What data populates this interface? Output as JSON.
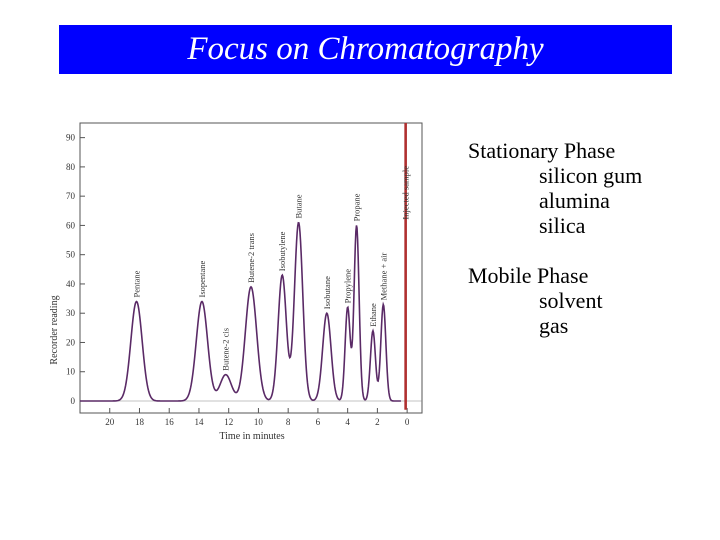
{
  "header": {
    "title": "Focus on Chromatography"
  },
  "stationary": {
    "title": "Stationary Phase",
    "items": [
      "silicon gum",
      "alumina",
      "silica"
    ]
  },
  "mobile": {
    "title": "Mobile Phase",
    "items": [
      "solvent",
      "gas"
    ]
  },
  "colors": {
    "title_bg": "#0000ff",
    "title_text": "#ffffff",
    "trace": "#5a2a66",
    "injection": "#b03030"
  },
  "chart_data": {
    "type": "line",
    "title": "",
    "xlabel": "Time in minutes",
    "ylabel": "Recorder reading",
    "xlim": [
      22,
      -1
    ],
    "ylim": [
      0,
      95
    ],
    "x_ticks": [
      20,
      18,
      16,
      14,
      12,
      10,
      8,
      6,
      4,
      2,
      0
    ],
    "y_ticks": [
      0,
      10,
      20,
      30,
      40,
      50,
      60,
      70,
      80,
      90
    ],
    "grid": false,
    "peaks": [
      {
        "name": "Pentane",
        "x": 18.2,
        "y": 34
      },
      {
        "name": "Isopentane",
        "x": 13.8,
        "y": 34
      },
      {
        "name": "Butene-2 cis",
        "x": 12.2,
        "y": 9
      },
      {
        "name": "Butene-2 trans",
        "x": 10.5,
        "y": 39
      },
      {
        "name": "Isobutylene",
        "x": 8.4,
        "y": 43
      },
      {
        "name": "Butane",
        "x": 7.3,
        "y": 61
      },
      {
        "name": "Isobutane",
        "x": 5.4,
        "y": 30
      },
      {
        "name": "Propylene",
        "x": 4.0,
        "y": 32
      },
      {
        "name": "Propane",
        "x": 3.4,
        "y": 60
      },
      {
        "name": "Ethane",
        "x": 2.3,
        "y": 24
      },
      {
        "name": "Methane + air",
        "x": 1.6,
        "y": 33
      },
      {
        "name": "Injected sample",
        "x": 0.1,
        "y": 95
      }
    ]
  }
}
